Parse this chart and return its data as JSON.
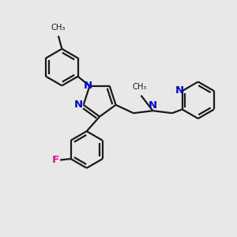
{
  "bg_color": "#e8e8e8",
  "bond_color": "#1a1a1a",
  "n_color": "#0000ee",
  "f_color": "#ee00aa",
  "line_width": 1.6,
  "font_size": 8.5,
  "figsize": [
    3.0,
    3.0
  ],
  "dpi": 100,
  "xlim": [
    0,
    10
  ],
  "ylim": [
    0,
    10
  ]
}
